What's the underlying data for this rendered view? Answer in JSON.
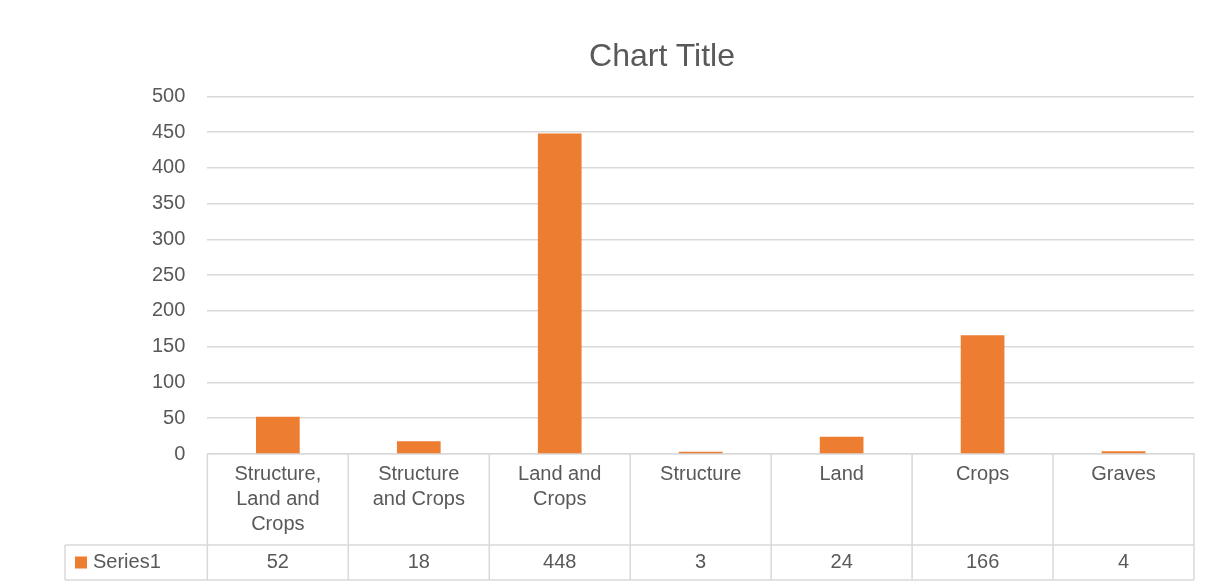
{
  "chart_data": {
    "type": "bar",
    "title": "Chart Title",
    "categories": [
      "Structure, Land and Crops",
      "Structure and Crops",
      "Land and Crops",
      "Structure",
      "Land",
      "Crops",
      "Graves"
    ],
    "series": [
      {
        "name": "Series1",
        "color": "#ed7d31",
        "values": [
          52,
          18,
          448,
          3,
          24,
          166,
          4
        ]
      }
    ],
    "ylim": [
      0,
      500
    ],
    "yticks": [
      0,
      50,
      100,
      150,
      200,
      250,
      300,
      350,
      400,
      450,
      500
    ],
    "grid": "y",
    "legend": "bottom",
    "data_labels": true
  }
}
